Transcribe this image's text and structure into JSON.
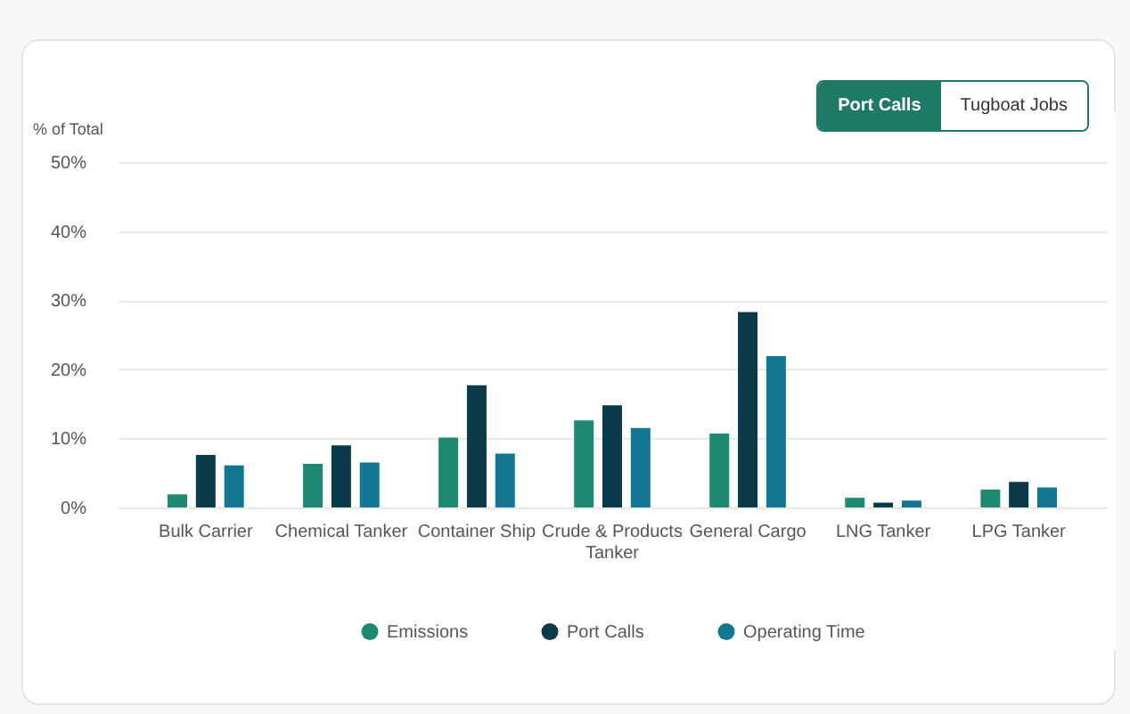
{
  "chart_data": {
    "type": "bar",
    "ylabel": "% of Total",
    "categories": [
      "Bulk Carrier",
      "Chemical Tanker",
      "Container Ship",
      "Crude & Products Tanker",
      "General Cargo",
      "LNG Tanker",
      "LPG Tanker"
    ],
    "series": [
      {
        "name": "Emissions",
        "color": "#1e8a72",
        "values": [
          1.9,
          6.3,
          10.1,
          12.6,
          10.7,
          1.4,
          2.6
        ]
      },
      {
        "name": "Port Calls",
        "color": "#0b3a4a",
        "values": [
          7.6,
          9.0,
          17.7,
          14.8,
          28.3,
          0.7,
          3.7
        ]
      },
      {
        "name": "Operating Time",
        "color": "#13788f",
        "values": [
          6.1,
          6.5,
          7.8,
          11.5,
          21.9,
          1.0,
          2.9
        ]
      }
    ],
    "ylim": [
      0,
      50
    ],
    "yticks": [
      {
        "value": 0,
        "label": "0%"
      },
      {
        "value": 10,
        "label": "10%"
      },
      {
        "value": 20,
        "label": "20%"
      },
      {
        "value": 30,
        "label": "30%"
      },
      {
        "value": 40,
        "label": "40%"
      },
      {
        "value": 50,
        "label": "50%"
      }
    ],
    "grid": "y",
    "legend": "bottom",
    "annotations": [
      "Port Calls",
      "Tugboat Jobs"
    ]
  }
}
